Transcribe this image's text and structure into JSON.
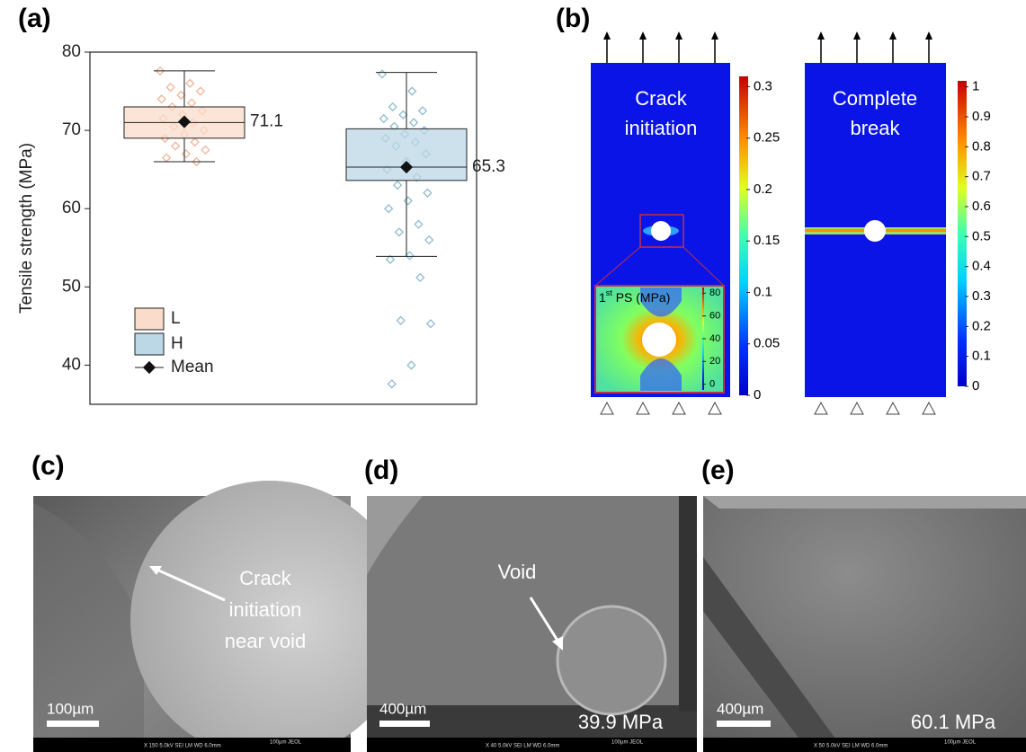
{
  "chart_data": {
    "type": "box",
    "label": "(a)",
    "ylabel": "Tensile strength (MPa)",
    "ylim": [
      35,
      80
    ],
    "yticks": [
      40,
      50,
      60,
      70,
      80
    ],
    "mean_label": "Mean",
    "series": [
      {
        "name": "L",
        "color": "#f9dccb",
        "point_color": "#f0b59a",
        "whisker_low": 66,
        "q1": 69,
        "median": 71,
        "q3": 73,
        "whisker_high": 77.6,
        "mean": 71.1,
        "points": [
          77.6,
          76,
          75.5,
          75,
          74.5,
          74,
          73.5,
          73,
          72.5,
          72,
          71.5,
          71,
          70.5,
          70,
          69.5,
          69,
          68.5,
          68,
          67.5,
          67,
          66.5,
          66
        ]
      },
      {
        "name": "H",
        "color": "#bcd7e6",
        "point_color": "#8fbcd0",
        "whisker_low": 53.9,
        "q1": 63.6,
        "median": 65.3,
        "q3": 70.2,
        "whisker_high": 77.4,
        "mean": 65.3,
        "points": [
          77.2,
          75,
          73,
          72.5,
          72,
          71.5,
          71,
          70.5,
          70,
          69.5,
          69,
          68.5,
          68,
          67,
          66,
          65,
          64,
          63,
          62,
          61,
          60,
          58,
          57,
          56,
          54,
          53.5,
          51.2,
          45.7,
          45.3,
          40,
          37.6
        ]
      }
    ]
  },
  "panel_b": {
    "label": "(b)",
    "left": {
      "title_1": "Crack",
      "title_2": "initiation",
      "clim": [
        0,
        0.31
      ],
      "cticks": [
        0,
        0.05,
        0.1,
        0.15,
        0.2,
        0.25,
        0.3
      ],
      "inset": {
        "title_main": "1",
        "title_sup": "st",
        "title_rest": " PS (MPa)",
        "clim": [
          -5,
          85
        ],
        "cticks": [
          0,
          20,
          40,
          60,
          80
        ]
      }
    },
    "right": {
      "title_1": "Complete",
      "title_2": "break",
      "clim": [
        0,
        1.02
      ],
      "cticks": [
        0,
        0.1,
        0.2,
        0.3,
        0.4,
        0.5,
        0.6,
        0.7,
        0.8,
        0.9,
        1
      ]
    }
  },
  "panel_c": {
    "label": "(c)",
    "annotation_1": "Crack",
    "annotation_2": "initiation",
    "annotation_3": "near void",
    "scale": "100µm",
    "footer": "X 150     5.0kV  SEI      LM      WD 6.0mm",
    "footer_right": "100µm JEOL"
  },
  "panel_d": {
    "label": "(d)",
    "annotation": "Void",
    "scale": "400µm",
    "stress": "39.9 MPa",
    "footer": "X 40     5.0kV  SEI      LM      WD 6.0mm",
    "footer_right": "100µm JEOL"
  },
  "panel_e": {
    "label": "(e)",
    "scale": "400µm",
    "stress": "60.1 MPa",
    "footer": "X 50     5.0kV  SEI      LM      WD 6.0mm",
    "footer_right": "100µm JEOL"
  }
}
